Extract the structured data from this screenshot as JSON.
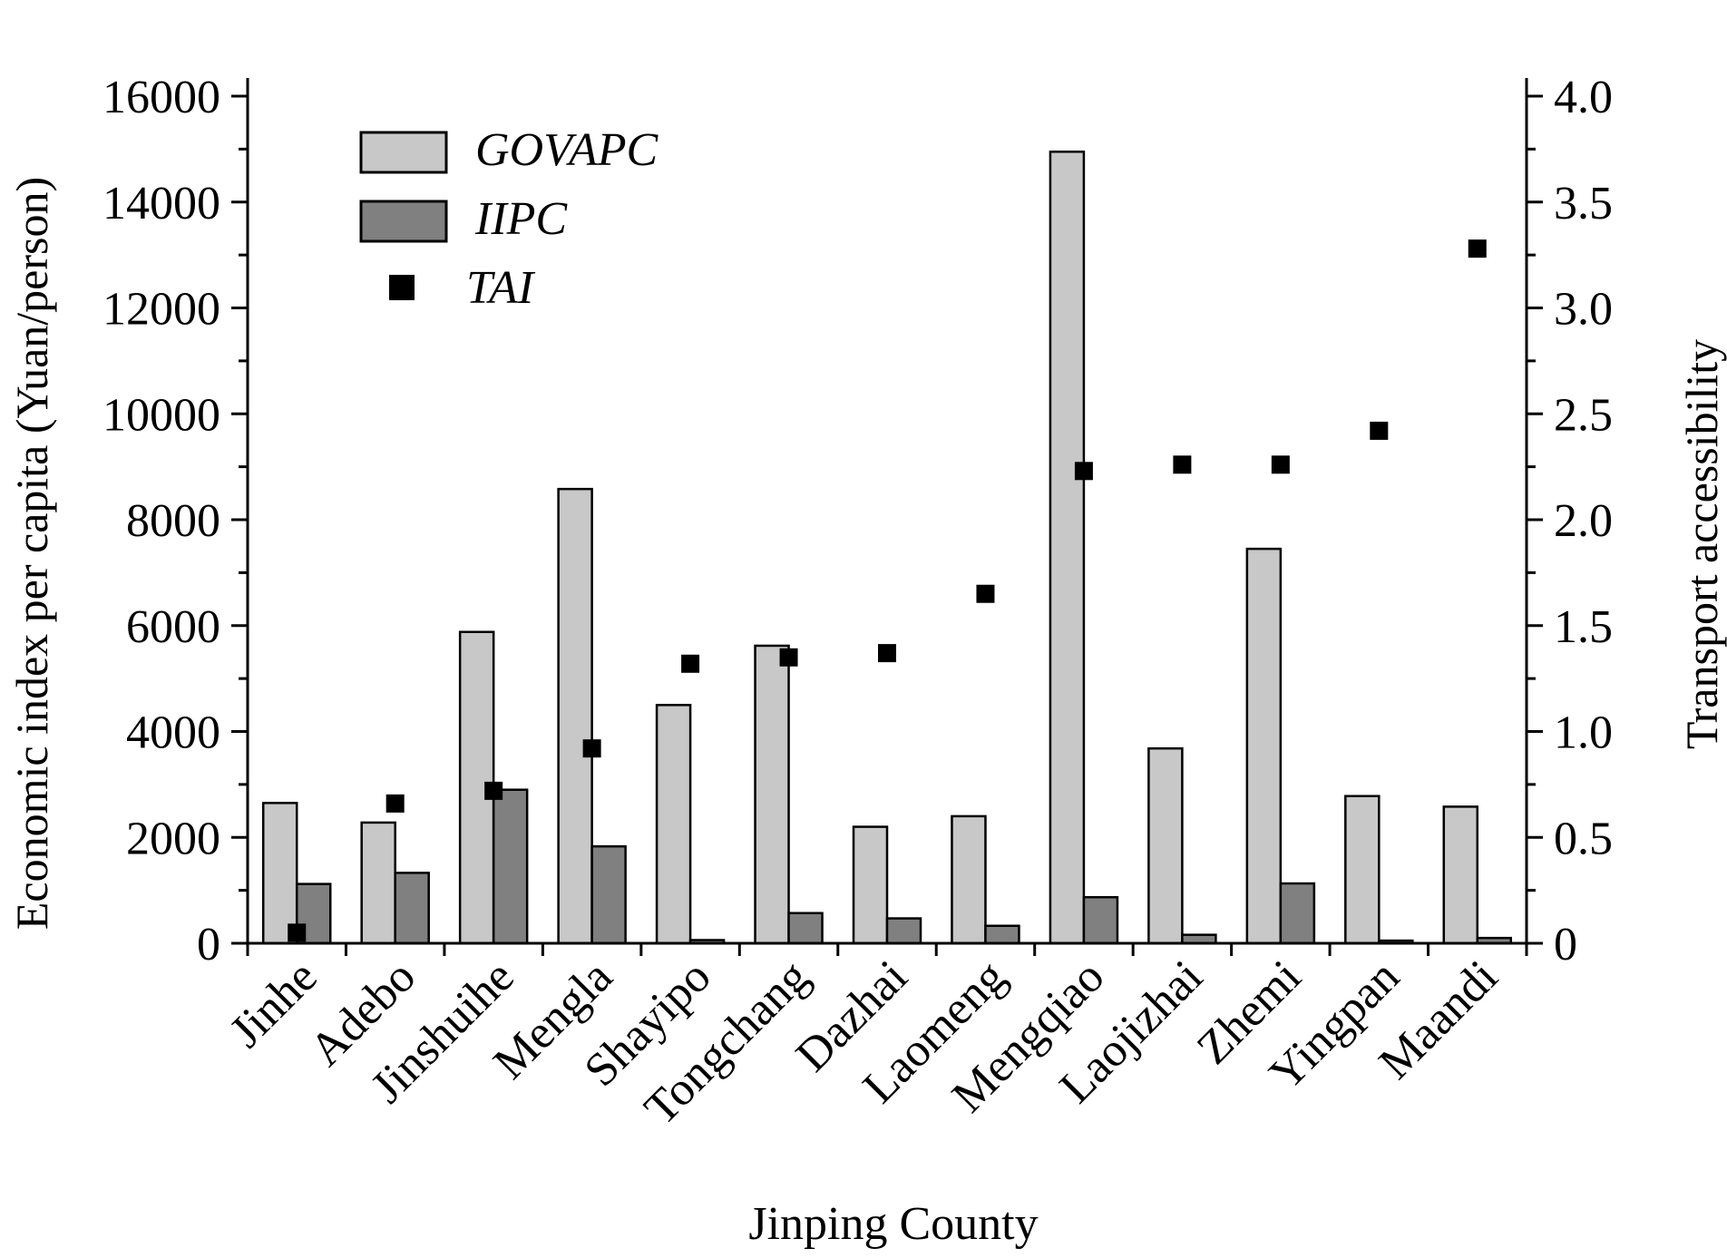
{
  "chart_data": {
    "type": "bar",
    "xlabel": "Jinping County",
    "ylabel": "Economic index per capita (Yuan/person)",
    "y2label": "Transport accessibility",
    "categories": [
      "Jinhe",
      "Adebo",
      "Jinshuihe",
      "Mengla",
      "Shayipo",
      "Tongchang",
      "Dazhai",
      "Laomeng",
      "Mengqiao",
      "Laojizhai",
      "Zhemi",
      "Yingpan",
      "Maandi"
    ],
    "ylim": [
      0,
      16000
    ],
    "y2lim": [
      0,
      4.0
    ],
    "yticks": [
      "0",
      "2000",
      "4000",
      "6000",
      "8000",
      "10000",
      "12000",
      "14000",
      "16000"
    ],
    "y2ticks": [
      "0",
      "0.5",
      "1.0",
      "1.5",
      "2.0",
      "2.5",
      "3.0",
      "3.5",
      "4.0"
    ],
    "series": [
      {
        "name": "GOVAPC",
        "type": "bar",
        "axis": "left",
        "color": "#c8c8c8",
        "values": [
          2650,
          2280,
          5880,
          8580,
          4500,
          5620,
          2200,
          2400,
          14950,
          3680,
          7450,
          2780,
          2580
        ]
      },
      {
        "name": "IIPC",
        "type": "bar",
        "axis": "left",
        "color": "#808080",
        "values": [
          1120,
          1330,
          2900,
          1830,
          60,
          570,
          470,
          330,
          870,
          160,
          1130,
          50,
          100
        ]
      },
      {
        "name": "TAI",
        "type": "scatter",
        "axis": "right",
        "color": "#000000",
        "values": [
          0.05,
          0.66,
          0.72,
          0.92,
          1.32,
          1.35,
          1.37,
          1.65,
          2.23,
          2.26,
          2.26,
          2.42,
          3.28
        ]
      }
    ],
    "legend": {
      "position": "top-left",
      "entries": [
        "GOVAPC",
        "IIPC",
        "TAI"
      ]
    }
  }
}
